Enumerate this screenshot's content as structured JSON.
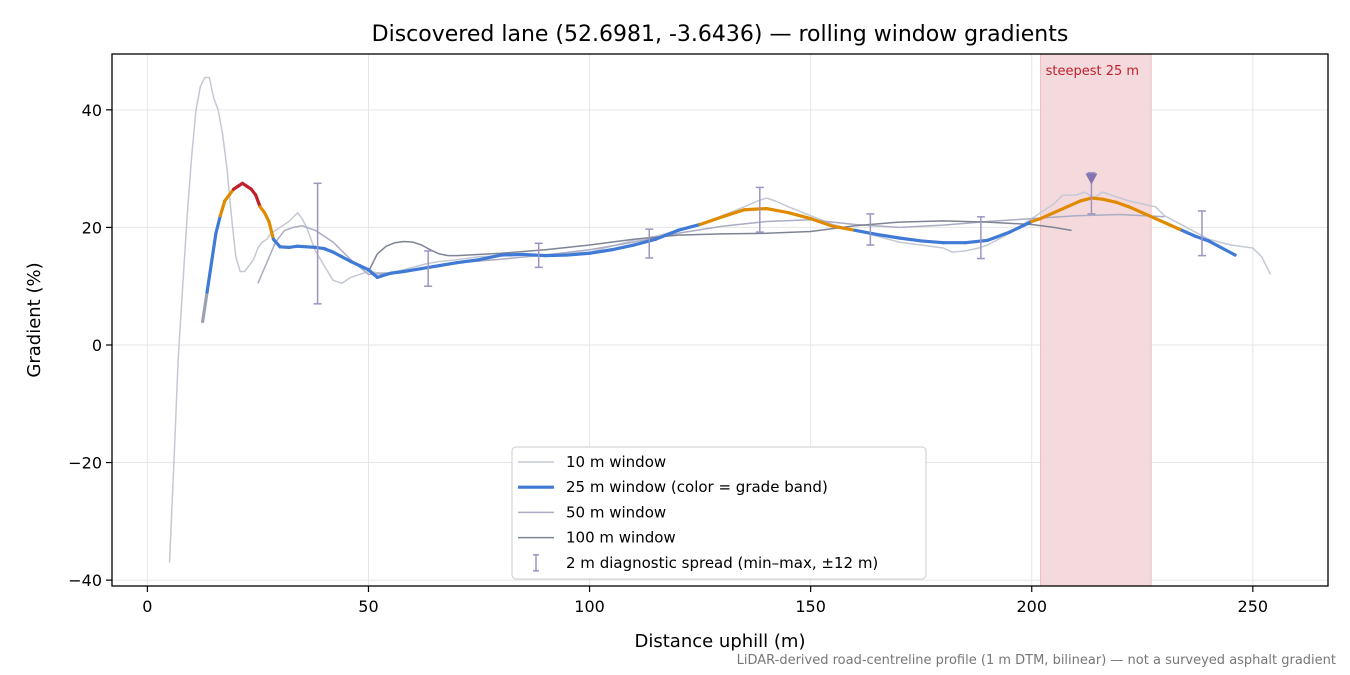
{
  "chart_data": {
    "type": "line",
    "title": "Discovered lane (52.6981, -3.6436) — rolling window gradients",
    "xlabel": "Distance uphill (m)",
    "ylabel": "Gradient (%)",
    "xlim": [
      -8,
      267
    ],
    "ylim": [
      -41,
      49.5
    ],
    "xticks": [
      0,
      50,
      100,
      150,
      200,
      250
    ],
    "yticks": [
      -40,
      -20,
      0,
      20,
      40
    ],
    "xtick_labels": [
      "0",
      "50",
      "100",
      "150",
      "200",
      "250"
    ],
    "ytick_labels": [
      "−40",
      "−20",
      "0",
      "20",
      "40"
    ],
    "grid": true,
    "legend_position": "bottom-center",
    "footnote": "LiDAR-derived road-centreline profile (1 m DTM, bilinear) — not a surveyed asphalt gradient",
    "highlight": {
      "label": "steepest 25 m",
      "x_start": 202,
      "x_end": 227,
      "color": "#e8a0a8"
    },
    "colors": {
      "w10": "#c3c9d4",
      "w25_band_low": "#3f7ad6",
      "w25_band_mid": "#e08a00",
      "w25_band_high": "#c0202e",
      "w25_edge": "#9aa3b0",
      "w50": "#a9acc4",
      "w100": "#7e8494",
      "diag": "#9d94c2",
      "marker": "#8474b2",
      "highlight_text": "#c0202e"
    },
    "series": [
      {
        "name": "10 m window",
        "x": [
          5,
          6,
          7,
          8,
          9,
          10,
          11,
          12,
          13,
          14,
          15,
          16,
          17,
          18,
          19,
          20,
          21,
          22,
          23,
          24,
          25,
          26,
          27,
          28,
          29,
          30,
          32,
          34,
          35,
          36,
          37,
          38,
          40,
          42,
          44,
          46,
          48,
          50,
          52,
          55,
          58,
          60,
          63,
          66,
          70,
          75,
          80,
          85,
          90,
          95,
          100,
          105,
          110,
          115,
          120,
          125,
          130,
          135,
          138,
          140,
          142,
          145,
          150,
          155,
          160,
          165,
          170,
          175,
          180,
          182,
          185,
          188,
          190,
          195,
          200,
          203,
          205,
          207,
          210,
          212,
          214,
          216,
          218,
          220,
          222,
          225,
          228,
          230,
          235,
          240,
          245,
          250,
          252,
          254
        ],
        "y": [
          -37,
          -20,
          -2,
          10,
          22,
          32,
          40,
          44,
          45.5,
          45.5,
          42,
          40,
          36,
          30,
          22,
          15,
          12.5,
          12.5,
          13.5,
          14.5,
          16.5,
          17.5,
          18,
          19,
          19.5,
          20,
          21,
          22.5,
          21.5,
          20,
          18,
          16,
          13.5,
          11,
          10.5,
          11.5,
          12,
          12.5,
          12.3,
          12.3,
          12.8,
          13.2,
          13.8,
          14.2,
          14.5,
          15,
          15.2,
          15.3,
          15.4,
          15.6,
          15.8,
          16.8,
          17.8,
          18.5,
          19.5,
          20.5,
          22,
          23.5,
          24.5,
          25,
          24.5,
          23.5,
          22,
          20.5,
          19.5,
          18.5,
          17.5,
          17,
          16.5,
          15.8,
          16,
          16.5,
          17,
          19,
          21.5,
          23,
          24,
          25.5,
          25.5,
          26,
          25,
          26,
          25.5,
          25,
          24.5,
          24,
          23.5,
          22,
          20,
          18,
          17,
          16.5,
          15,
          12
        ]
      },
      {
        "name": "25 m window (color = grade band)",
        "x": [
          12.5,
          13.5,
          14.5,
          15.5,
          16.5,
          17.5,
          18.5,
          19.5,
          20.5,
          21.5,
          22.5,
          23.5,
          24.5,
          25.5,
          26.5,
          27.5,
          28.5,
          30,
          32,
          34,
          36,
          38,
          40,
          42,
          44,
          46,
          48,
          50,
          52,
          55,
          58,
          62,
          66,
          70,
          75,
          80,
          85,
          90,
          95,
          100,
          105,
          110,
          115,
          120,
          125,
          130,
          135,
          140,
          145,
          150,
          155,
          160,
          165,
          170,
          175,
          180,
          185,
          190,
          195,
          200,
          202,
          205,
          208,
          211,
          213.5,
          216,
          219,
          222,
          225,
          228,
          231,
          234,
          237,
          240,
          243,
          246
        ],
        "y": [
          4,
          9,
          14,
          19,
          22,
          24.5,
          25.5,
          26.5,
          27,
          27.5,
          27,
          26.5,
          25.5,
          23.5,
          22.5,
          21,
          18,
          16.7,
          16.6,
          16.8,
          16.7,
          16.6,
          16.4,
          15.8,
          15,
          14.2,
          13.5,
          12.8,
          11.5,
          12.2,
          12.5,
          13,
          13.5,
          14,
          14.5,
          15.3,
          15.4,
          15.2,
          15.3,
          15.6,
          16.2,
          17,
          18,
          19.5,
          20.5,
          21.8,
          23,
          23.2,
          22.5,
          21.5,
          20.2,
          19.5,
          18.8,
          18.2,
          17.7,
          17.4,
          17.4,
          17.8,
          19.2,
          21,
          21.5,
          22.5,
          23.5,
          24.5,
          25,
          24.8,
          24.3,
          23.5,
          22.5,
          21.5,
          20.5,
          19.5,
          18.5,
          17.7,
          16.5,
          15.3
        ],
        "bands": [
          "low",
          "low",
          "low",
          "low",
          "mid",
          "mid",
          "mid",
          "high",
          "high",
          "high",
          "high",
          "high",
          "high",
          "mid",
          "mid",
          "mid",
          "low",
          "low",
          "low",
          "low",
          "low",
          "low",
          "low",
          "low",
          "low",
          "low",
          "low",
          "low",
          "low",
          "low",
          "low",
          "low",
          "low",
          "low",
          "low",
          "low",
          "low",
          "low",
          "low",
          "low",
          "low",
          "low",
          "low",
          "low",
          "mid",
          "mid",
          "mid",
          "mid",
          "mid",
          "mid",
          "mid",
          "low",
          "low",
          "low",
          "low",
          "low",
          "low",
          "low",
          "low",
          "mid",
          "mid",
          "mid",
          "mid",
          "mid",
          "mid",
          "mid",
          "mid",
          "mid",
          "mid",
          "mid",
          "mid",
          "low",
          "low",
          "low",
          "low",
          "low"
        ]
      },
      {
        "name": "50 m window",
        "x": [
          25,
          27,
          29,
          31,
          33,
          35,
          38,
          42,
          46,
          50,
          55,
          60,
          65,
          70,
          80,
          90,
          100,
          110,
          120,
          130,
          140,
          150,
          160,
          170,
          180,
          190,
          200,
          210,
          220,
          230
        ],
        "y": [
          10.5,
          14,
          17.5,
          19.5,
          20,
          20.3,
          19.5,
          17.5,
          14.5,
          12,
          12.2,
          12.8,
          13.4,
          14,
          14.6,
          15.3,
          16.2,
          17.5,
          19,
          20.2,
          21,
          21.3,
          20.5,
          20,
          20.4,
          21,
          21.5,
          22,
          22.2,
          21.8
        ]
      },
      {
        "name": "100 m window",
        "x": [
          50,
          52,
          54,
          56,
          58,
          60,
          62,
          64,
          66,
          68,
          70,
          80,
          90,
          100,
          110,
          120,
          130,
          140,
          150,
          160,
          170,
          180,
          190,
          200,
          205,
          209
        ],
        "y": [
          12.5,
          15.5,
          16.8,
          17.4,
          17.6,
          17.5,
          17,
          16.2,
          15.5,
          15.2,
          15.2,
          15.6,
          16.2,
          17,
          18,
          18.7,
          18.9,
          19,
          19.3,
          20.3,
          20.9,
          21.1,
          20.9,
          20.5,
          20,
          19.5
        ]
      }
    ],
    "diagnostic_spread": {
      "name": "2 m diagnostic spread (min–max, ±12 m)",
      "x": [
        38.5,
        63.5,
        88.5,
        113.5,
        138.5,
        163.5,
        188.5,
        213.5,
        238.5
      ],
      "ymin": [
        7,
        10,
        13.2,
        14.8,
        19.2,
        17,
        14.7,
        22.3,
        15.2
      ],
      "ymax": [
        27.5,
        16,
        17.3,
        19.7,
        26.8,
        22.3,
        21.8,
        29.3,
        22.8
      ]
    },
    "peak_marker": {
      "x": 213.5,
      "y": 28.5
    }
  }
}
